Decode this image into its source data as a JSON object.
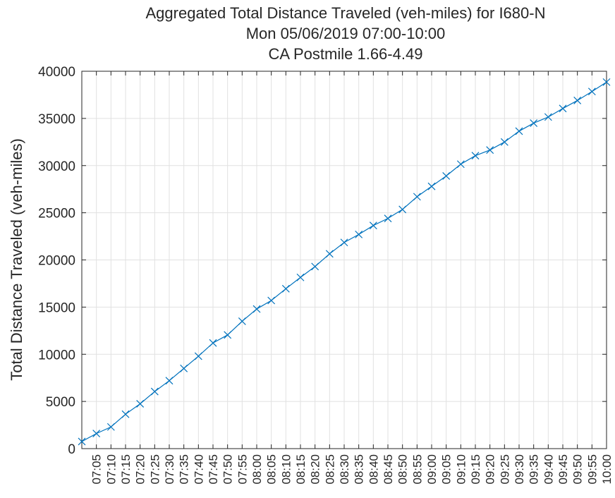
{
  "chart_data": {
    "type": "line",
    "title": [
      "Aggregated Total Distance Traveled (veh-miles) for I680-N",
      "Mon 05/06/2019 07:00-10:00",
      "CA Postmile 1.66-4.49"
    ],
    "xlabel": "",
    "ylabel": "Total Distance Traveled (veh-miles)",
    "x": [
      "07:00",
      "07:05",
      "07:10",
      "07:15",
      "07:20",
      "07:25",
      "07:30",
      "07:35",
      "07:40",
      "07:45",
      "07:50",
      "07:55",
      "08:00",
      "08:05",
      "08:10",
      "08:15",
      "08:20",
      "08:25",
      "08:30",
      "08:35",
      "08:40",
      "08:45",
      "08:50",
      "08:55",
      "09:00",
      "09:05",
      "09:10",
      "09:15",
      "09:20",
      "09:25",
      "09:30",
      "09:35",
      "09:40",
      "09:45",
      "09:50",
      "09:55",
      "10:00"
    ],
    "x_tick_labels": [
      "07:05",
      "07:10",
      "07:15",
      "07:20",
      "07:25",
      "07:30",
      "07:35",
      "07:40",
      "07:45",
      "07:50",
      "07:55",
      "08:00",
      "08:05",
      "08:10",
      "08:15",
      "08:20",
      "08:25",
      "08:30",
      "08:35",
      "08:40",
      "08:45",
      "08:50",
      "08:55",
      "09:00",
      "09:05",
      "09:10",
      "09:15",
      "09:20",
      "09:25",
      "09:30",
      "09:35",
      "09:40",
      "09:45",
      "09:50",
      "09:55",
      "10:00"
    ],
    "series": [
      {
        "values": [
          750,
          1600,
          2300,
          3650,
          4750,
          6050,
          7200,
          8500,
          9800,
          11200,
          12050,
          13500,
          14800,
          15700,
          16950,
          18150,
          19300,
          20650,
          21850,
          22700,
          23650,
          24400,
          25350,
          26700,
          27800,
          28900,
          30150,
          31050,
          31650,
          32500,
          33650,
          34500,
          35150,
          36050,
          36900,
          37850,
          38850
        ],
        "color": "#0072BD",
        "marker": "x"
      }
    ],
    "ylim": [
      0,
      40000
    ],
    "yticks": [
      0,
      5000,
      10000,
      15000,
      20000,
      25000,
      30000,
      35000,
      40000
    ],
    "grid": true
  }
}
